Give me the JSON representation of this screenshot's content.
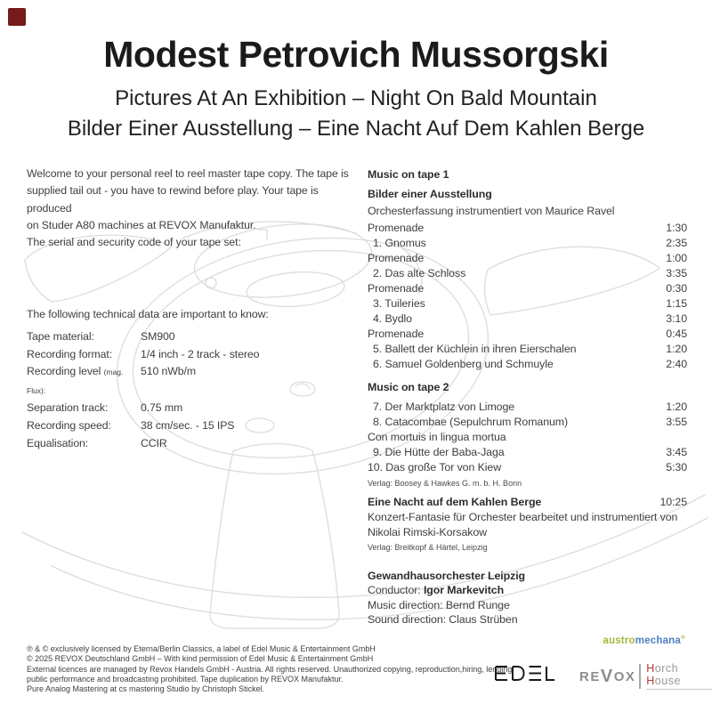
{
  "header": {
    "title": "Modest Petrovich Mussorgski",
    "subtitle_en": "Pictures At An Exhibition – Night On Bald Mountain",
    "subtitle_de": "Bilder Einer Ausstellung – Eine Nacht Auf Dem Kahlen Berge"
  },
  "accents": {
    "corner_square": "#761a1a"
  },
  "left": {
    "welcome_lines": [
      "Welcome to your personal reel to reel master tape copy. The tape is",
      "supplied tail out - you have to rewind before play. Your tape is produced",
      "on Studer A80 machines at REVOX Manufaktur.",
      "The serial and security code of your tape set:"
    ],
    "tech_intro": "The following technical data are important to know:",
    "specs": [
      {
        "label": "Tape material:",
        "small": "",
        "value": "SM900"
      },
      {
        "label": "Recording format:",
        "small": "",
        "value": "1/4 inch - 2 track - stereo"
      },
      {
        "label": "Recording level ",
        "small": "(mag. Flux):",
        "value": "510 nWb/m"
      },
      {
        "label": "Separation track:",
        "small": "",
        "value": "0.75 mm"
      },
      {
        "label": "Recording speed:",
        "small": "",
        "value": "38 cm/sec. - 15 IPS"
      },
      {
        "label": "Equalisation:",
        "small": "",
        "value": "CCIR"
      }
    ]
  },
  "right": {
    "tape1_header": "Music on tape 1",
    "work1_title": "Bilder einer Ausstellung",
    "work1_sub": "Orchesterfassung instrumentiert von Maurice Ravel",
    "tape1_tracks": [
      {
        "name": "Promenade",
        "time": "1:30",
        "indent": false
      },
      {
        "name": "1. Gnomus",
        "time": "2:35",
        "indent": true
      },
      {
        "name": "Promenade",
        "time": "1:00",
        "indent": false
      },
      {
        "name": "2. Das alte Schloss",
        "time": "3:35",
        "indent": true
      },
      {
        "name": "Promenade",
        "time": "0:30",
        "indent": false
      },
      {
        "name": "3. Tuileries",
        "time": "1:15",
        "indent": true
      },
      {
        "name": "4. Bydlo",
        "time": "3:10",
        "indent": true
      },
      {
        "name": "Promenade",
        "time": "0:45",
        "indent": false
      },
      {
        "name": "5. Ballett der Küchlein in ihren Eierschalen",
        "time": "1:20",
        "indent": true
      },
      {
        "name": "6. Samuel Goldenberg und Schmuyle",
        "time": "2:40",
        "indent": true
      }
    ],
    "tape2_header": "Music on tape 2",
    "tape2_tracks": [
      {
        "name": "7. Der Marktplatz von Limoge",
        "time": "1:20",
        "indent": true
      },
      {
        "name": "8. Catacombae (Sepulchrum Romanum)",
        "time": "3:55",
        "indent": true
      },
      {
        "name": "Con mortuis in lingua mortua",
        "time": "",
        "indent": false
      },
      {
        "name": "9. Die Hütte der Baba-Jaga",
        "time": "3:45",
        "indent": true
      },
      {
        "name": "10. Das große Tor von Kiew",
        "time": "5:30",
        "indent": false
      }
    ],
    "verlag1": "Verlag: Boosey & Hawkes G. m. b. H. Bonn",
    "work2_title": "Eine Nacht auf dem Kahlen Berge",
    "work2_time": "10:25",
    "work2_sub1": "Konzert-Fantasie für Orchester bearbeitet und instrumentiert von",
    "work2_sub2": "Nikolai Rimski-Korsakow",
    "verlag2": "Verlag: Breitkopf & Härtel, Leipzig",
    "credits": {
      "orchestra": "Gewandhausorchester Leipzig",
      "conductor_label": "Conductor: ",
      "conductor_name": "Igor Markevitch",
      "music_direction": "Music direction: Bernd Runge",
      "sound_direction": "Sound direction: Claus Strüben"
    }
  },
  "footer": {
    "legal_lines": [
      "℗ & © exclusively licensed by Eterna/Berlin Classics, a label of Edel Music & Entertainment GmbH",
      "© 2025 REVOX Deutschland GmbH – With kind permission of Edel Music & Entertainment GmbH",
      "External licences are managed by Revox Handels GmbH - Austria. All rights reserved. Unauthorized copying, reproduction,hiring, lending,",
      "public performance and broadcasting prohibited. Tape duplication by REVOX Manufaktur.",
      "Pure Analog Mastering at cs mastering Studio by Christoph Stickel."
    ],
    "logos": {
      "austromechana": {
        "part1": "austro",
        "part2": "mechana",
        "reg": "®",
        "part1_color": "#a4b83c",
        "part2_color": "#4b80c0"
      },
      "edel": "EDEL",
      "revox": "REVOX",
      "horch_house": {
        "text": "Horch House",
        "accent_color": "#b8392e",
        "base_color": "#9a9a9a"
      }
    }
  }
}
